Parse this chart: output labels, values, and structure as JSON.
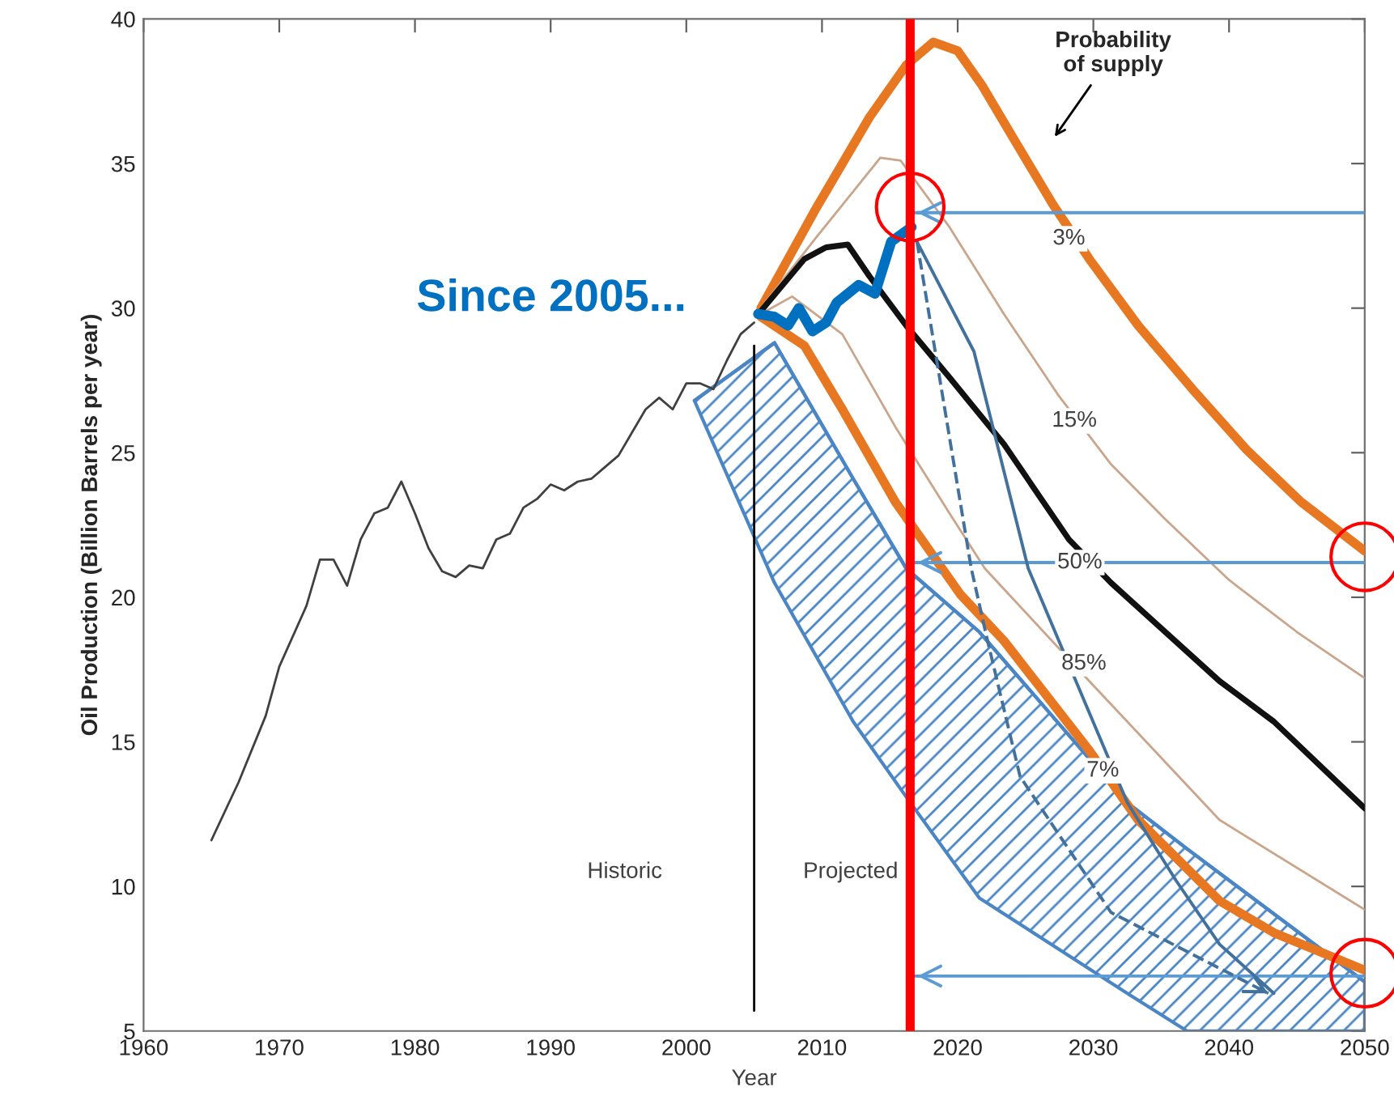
{
  "chart_data": {
    "type": "line",
    "xlabel": "Year",
    "ylabel": "Oil Production (Billion Barrels per year)",
    "xlim": [
      1960,
      2050
    ],
    "xticks": [
      1960,
      1970,
      1980,
      1990,
      2000,
      2010,
      2020,
      2030,
      2040,
      2050
    ],
    "ylim": [
      5,
      40
    ],
    "yticks": [
      5,
      10,
      15,
      20,
      25,
      30,
      35,
      40
    ],
    "grid": false,
    "legend": false,
    "series": [
      {
        "color": "#404040",
        "x": [
          1965,
          1967,
          1969,
          1970,
          1972,
          1973,
          1974,
          1975,
          1976,
          1977,
          1978,
          1979,
          1980,
          1981,
          1982,
          1983,
          1984,
          1985,
          1986,
          1987,
          1988,
          1989,
          1990,
          1991,
          1992,
          1993,
          1994,
          1995,
          1996,
          1997,
          1998,
          1999,
          2000,
          2001,
          2002,
          2003,
          2004,
          2005
        ],
        "values": [
          11.6,
          13.6,
          15.9,
          17.6,
          19.7,
          21.3,
          21.3,
          20.4,
          22.0,
          22.9,
          23.1,
          24.0,
          22.9,
          21.7,
          20.9,
          20.7,
          21.1,
          21.0,
          22.0,
          22.2,
          23.1,
          23.4,
          23.9,
          23.7,
          24.0,
          24.1,
          24.5,
          24.9,
          25.7,
          26.5,
          26.9,
          26.5,
          27.4,
          27.4,
          27.2,
          28.2,
          29.1,
          29.5
        ]
      },
      {
        "color": "#000000",
        "x": [
          2005,
          2005
        ],
        "values": [
          5.7,
          28.7
        ]
      },
      {
        "color": "#e87722",
        "x": [
          2005.5,
          2009.5,
          2013.5,
          2016.2,
          2018.2,
          2020,
          2021.8,
          2024.2,
          2027,
          2029.7,
          2033.3,
          2037.3,
          2041.3,
          2045.3,
          2050
        ],
        "values": [
          30.0,
          33.4,
          36.6,
          38.4,
          39.2,
          38.9,
          37.7,
          35.8,
          33.6,
          31.7,
          29.4,
          27.2,
          25.1,
          23.3,
          21.6
        ]
      },
      {
        "color": "#c9a58c",
        "x": [
          2005.5,
          2009.5,
          2014.3,
          2015.8,
          2019.4,
          2023.4,
          2027.4,
          2031.3,
          2035.3,
          2040,
          2045,
          2050
        ],
        "values": [
          30.0,
          32.4,
          35.2,
          35.1,
          32.8,
          29.8,
          27.0,
          24.6,
          22.7,
          20.6,
          18.8,
          17.2
        ]
      },
      {
        "color": "#111111",
        "x": [
          2005.5,
          2008.7,
          2010.3,
          2011.9,
          2013.5,
          2016.2,
          2019.4,
          2023.4,
          2028.2,
          2031.3,
          2039.3,
          2043.3,
          2050
        ],
        "values": [
          29.9,
          31.7,
          32.1,
          32.2,
          31.1,
          29.4,
          27.6,
          25.3,
          22.0,
          20.5,
          17.1,
          15.7,
          12.7
        ]
      },
      {
        "color": "#c9a58c",
        "x": [
          2005.5,
          2007.8,
          2011.5,
          2015.4,
          2019.4,
          2022,
          2029.7,
          2039.3,
          2050
        ],
        "values": [
          29.8,
          30.4,
          29.1,
          25.9,
          22.9,
          21.0,
          17.1,
          12.3,
          9.2
        ]
      },
      {
        "color": "#e87722",
        "x": [
          2005.5,
          2008.7,
          2011.5,
          2015.4,
          2020.2,
          2023.4,
          2029.7,
          2033.3,
          2039.3,
          2043.3,
          2050
        ],
        "values": [
          29.7,
          28.7,
          26.5,
          23.3,
          20.1,
          18.5,
          14.7,
          12.3,
          9.5,
          8.4,
          7.1
        ]
      },
      {
        "color": "#4a86c5",
        "x": [
          2000.6,
          2006.5,
          2012.3,
          2016.2,
          2021.6,
          2032.5,
          2036.9,
          2050
        ],
        "values": [
          26.8,
          28.8,
          24.1,
          21.0,
          18.8,
          12.9,
          11.3,
          6.7
        ],
        "lower": [
          26.8,
          20.5,
          15.7,
          13.1,
          9.6,
          6.3,
          5.0,
          5.0
        ],
        "upper": [
          26.8,
          28.8,
          24.1,
          21.0,
          18.8,
          12.9,
          11.3,
          6.7
        ]
      },
      {
        "color": "#0070c0",
        "x": [
          2005.3,
          2006.5,
          2007.5,
          2008.3,
          2009.3,
          2010.3,
          2011.1,
          2012.7,
          2013.9,
          2015.1,
          2016.6
        ],
        "values": [
          29.8,
          29.7,
          29.4,
          30.0,
          29.2,
          29.5,
          30.2,
          30.8,
          30.5,
          32.3,
          32.8
        ]
      },
      {
        "color": "#5b9bd5",
        "x": [
          2050,
          2016.7
        ],
        "values": [
          33.3,
          33.3
        ]
      },
      {
        "color": "#5b9bd5",
        "x": [
          2050,
          2016.7
        ],
        "values": [
          21.2,
          21.2
        ]
      },
      {
        "color": "#5b9bd5",
        "x": [
          2050,
          2016.7
        ],
        "values": [
          6.9,
          6.9
        ]
      },
      {
        "color": "#41719c",
        "x": [
          2017,
          2021.2,
          2025.2,
          2032.5,
          2036.1,
          2039.3,
          2043.3
        ],
        "values": [
          32.3,
          28.5,
          21.0,
          12.9,
          10.2,
          8.0,
          6.3
        ]
      },
      {
        "color": "#41719c",
        "line_style": "dashed",
        "x": [
          2017,
          2021.0,
          2022.2,
          2024.6,
          2031.3,
          2042.9
        ],
        "values": [
          32.3,
          21.0,
          18.5,
          13.8,
          9.1,
          6.3
        ]
      },
      {
        "type": "scatter",
        "color": "#ff0000",
        "marker": "circle",
        "x": [
          2016.5,
          2050,
          2050
        ],
        "values": [
          33.5,
          21.4,
          7.0
        ]
      }
    ],
    "ref_lines": [
      {
        "axis": "x",
        "value": 2016.5,
        "color": "#ff0000"
      }
    ],
    "annotations": [
      "Since 2005...",
      "Probability\nof supply",
      {
        "text": "3%",
        "x": 2028.2,
        "y": 32.4
      },
      {
        "text": "15%",
        "x": 2028.6,
        "y": 26.1
      },
      {
        "text": "50%",
        "x": 2029,
        "y": 21.2
      },
      {
        "text": "85%",
        "x": 2029.3,
        "y": 17.7
      },
      {
        "text": "7%",
        "x": 2030.7,
        "y": 14.0
      },
      "Historic",
      "Projected"
    ]
  }
}
